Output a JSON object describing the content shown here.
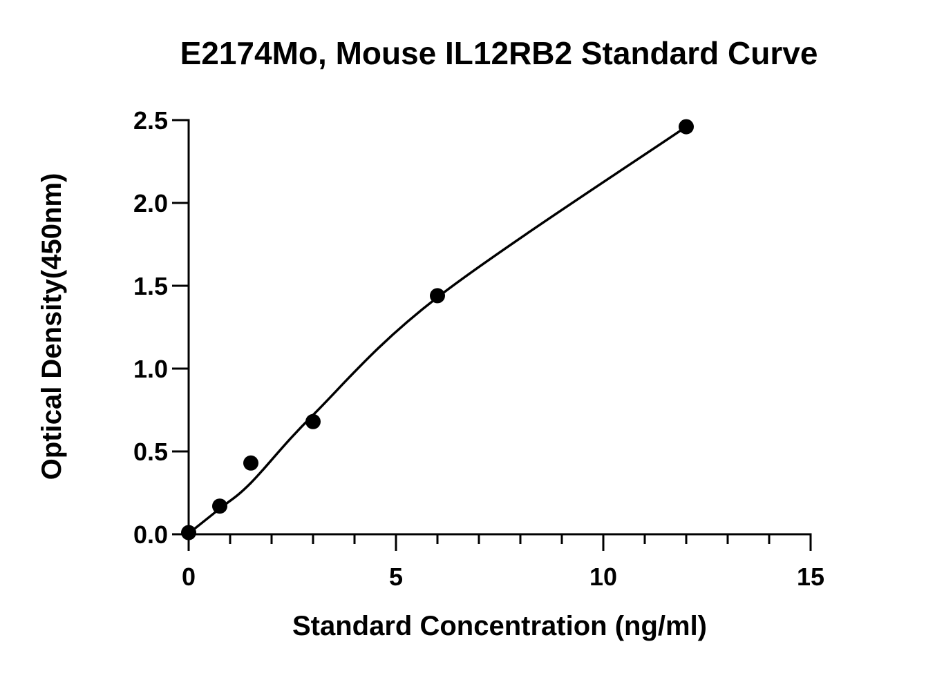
{
  "chart_data": {
    "type": "scatter",
    "title": "E2174Mo, Mouse IL12RB2 Standard Curve",
    "xlabel": "Standard Concentration (ng/ml)",
    "ylabel": "Optical Density(450nm)",
    "xlim": [
      0,
      15
    ],
    "ylim": [
      0,
      2.5
    ],
    "x_ticks": [
      "0",
      "5",
      "10",
      "15"
    ],
    "y_ticks": [
      "0.0",
      "0.5",
      "1.0",
      "1.5",
      "2.0",
      "2.5"
    ],
    "grid": false,
    "legend": "none",
    "series": [
      {
        "x": [
          0,
          0.75,
          1.5,
          3,
          6,
          12
        ],
        "y": [
          0.01,
          0.17,
          0.43,
          0.68,
          1.44,
          2.46
        ]
      }
    ],
    "fit_curve": {
      "type": "smooth fitted curve through points",
      "x": [
        0,
        0.75,
        1.5,
        3,
        6,
        12
      ],
      "y": [
        0.005,
        0.155,
        0.31,
        0.72,
        1.43,
        2.46
      ]
    },
    "colors": {
      "marker": "#000000",
      "line": "#000000"
    }
  }
}
